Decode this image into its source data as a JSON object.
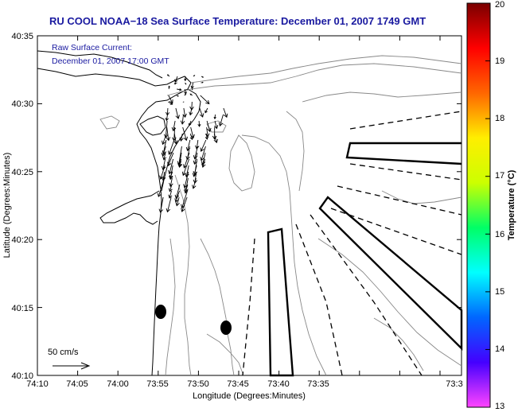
{
  "title": "RU COOL  NOAA−18  Sea Surface Temperature:  December 01, 2007 1749 GMT",
  "currents_label": "Raw Surface Current:",
  "currents_time": "December 01, 2007 17:00 GMT",
  "scale_label": "50 cm/s",
  "x_axis_label": "Longitude (Degrees:Minutes)",
  "y_axis_label": "Latitude (Degrees:Minutes)",
  "x_ticks": [
    "74:10",
    "74:05",
    "74:00",
    "73:55",
    "73:50",
    "73:45",
    "73:40",
    "73:35",
    "73:3"
  ],
  "y_ticks": [
    "40:35",
    "40:30",
    "40:25",
    "40:20",
    "40:15",
    "40:10"
  ],
  "colorbar": {
    "label": "Temperature (°C)",
    "min": 13,
    "max": 20,
    "ticks": [
      "20",
      "19",
      "18",
      "17",
      "16",
      "15",
      "14",
      "13"
    ],
    "stops": [
      "#ff44ff",
      "#4400ff",
      "#0066ff",
      "#00ffff",
      "#00ff66",
      "#ccff00",
      "#ffee00",
      "#ff6600",
      "#ff0000",
      "#7a0000"
    ]
  },
  "map": {
    "lon_range_min": [
      -74.1667,
      -73.55
    ],
    "lat_range_min": [
      40.1667,
      40.5833
    ]
  }
}
